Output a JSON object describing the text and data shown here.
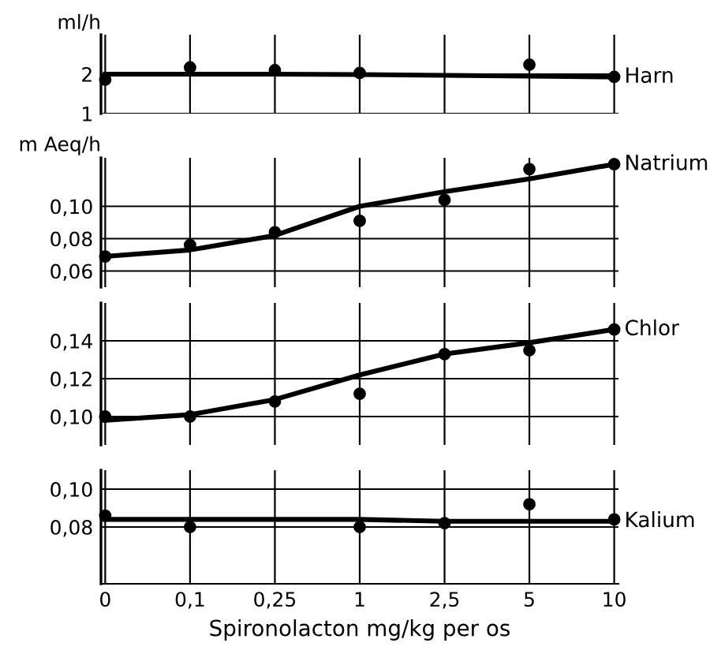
{
  "chart_data": [
    {
      "type": "scatter",
      "ylabel": "ml/h",
      "categories": [
        "0",
        "0,1",
        "0,25",
        "1",
        "2,5",
        "5",
        "10"
      ],
      "ylim": [
        1,
        3
      ],
      "yticks": [
        1,
        2
      ],
      "grid": true,
      "tick_labels": "y",
      "series": [
        {
          "color": "#000000",
          "marker": "circle",
          "values": [
            1.86,
            2.17,
            2.1,
            2.03,
            null,
            2.24,
            1.93
          ]
        },
        {
          "type": "line",
          "name": "Harn",
          "color": "#000000",
          "values": [
            2.0,
            2.0,
            2.0,
            1.99,
            1.97,
            1.95,
            1.93
          ]
        }
      ]
    },
    {
      "type": "scatter",
      "ylabel": "m Aeq/h",
      "categories": [
        "0",
        "0,1",
        "0,25",
        "1",
        "2,5",
        "5",
        "10"
      ],
      "ylim": [
        0.05,
        0.13
      ],
      "yticks": [
        {
          "value": 0.06,
          "label": "0,06"
        },
        {
          "value": 0.08,
          "label": "0,08"
        },
        {
          "value": 0.1,
          "label": "0,10"
        }
      ],
      "grid": true,
      "tick_labels": "y",
      "series": [
        {
          "color": "#000000",
          "marker": "circle",
          "values": [
            0.069,
            0.076,
            0.084,
            0.091,
            0.104,
            0.123,
            0.126
          ]
        },
        {
          "type": "line",
          "name": "Natrium",
          "color": "#000000",
          "values": [
            0.069,
            0.073,
            0.082,
            0.1,
            0.109,
            0.117,
            0.126
          ]
        }
      ]
    },
    {
      "type": "scatter",
      "categories": [
        "0",
        "0,1",
        "0,25",
        "1",
        "2,5",
        "5",
        "10"
      ],
      "ylim": [
        0.085,
        0.16
      ],
      "yticks": [
        {
          "value": 0.1,
          "label": "0,10"
        },
        {
          "value": 0.12,
          "label": "0,12"
        },
        {
          "value": 0.14,
          "label": "0,14"
        }
      ],
      "grid": true,
      "tick_labels": "y",
      "series": [
        {
          "color": "#000000",
          "marker": "circle",
          "values": [
            0.1,
            0.1,
            0.108,
            0.112,
            0.133,
            0.135,
            0.146
          ]
        },
        {
          "type": "line",
          "name": "Chlor",
          "color": "#000000",
          "values": [
            0.098,
            0.101,
            0.109,
            0.122,
            0.133,
            0.139,
            0.146
          ]
        }
      ]
    },
    {
      "type": "scatter",
      "xlabel": "Spironolacton mg/kg per os",
      "categories": [
        "0",
        "0,1",
        "0,25",
        "1",
        "2,5",
        "5",
        "10"
      ],
      "ylim": [
        0.05,
        0.11
      ],
      "yticks": [
        {
          "value": 0.08,
          "label": "0,08"
        },
        {
          "value": 0.1,
          "label": "0,10"
        }
      ],
      "grid": true,
      "series": [
        {
          "color": "#000000",
          "marker": "circle",
          "values": [
            0.086,
            0.08,
            null,
            0.08,
            0.082,
            0.092,
            0.084
          ]
        },
        {
          "type": "line",
          "name": "Kalium",
          "color": "#000000",
          "values": [
            0.084,
            0.084,
            0.084,
            0.084,
            0.083,
            0.083,
            0.083
          ]
        }
      ]
    }
  ]
}
